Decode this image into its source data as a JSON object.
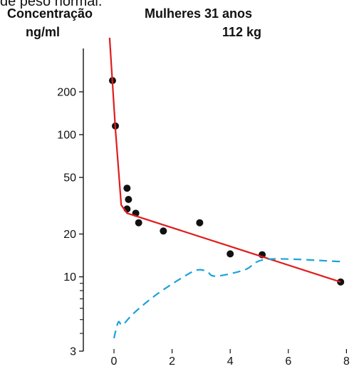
{
  "caption_top": "de peso normal.",
  "chart_data": {
    "type": "line",
    "title": "Mulheres 31 anos",
    "subtitle": "112 kg",
    "ylabel_line1": "Concentração",
    "ylabel_line2": "ng/ml",
    "xlabel": "",
    "yscale": "log",
    "ylim": [
      3,
      600
    ],
    "xlim": [
      -0.2,
      8
    ],
    "y_ticks": [
      3,
      10,
      20,
      50,
      100,
      200
    ],
    "y_minor_ticks": [
      4,
      5,
      6,
      7,
      8,
      9
    ],
    "x_ticks": [
      0,
      2,
      4,
      6,
      8
    ],
    "series": [
      {
        "style": "points",
        "color": "#111111",
        "x": [
          -0.05,
          0.05,
          0.45,
          0.5,
          0.45,
          0.75,
          0.85,
          1.7,
          2.95,
          4.0,
          5.1,
          7.8
        ],
        "y": [
          240,
          115,
          42,
          35,
          30,
          28,
          24,
          21,
          24,
          14.5,
          14.3,
          9.2
        ]
      },
      {
        "style": "solid",
        "color": "#e11b1b",
        "x": [
          -0.15,
          0.05,
          0.25,
          0.45,
          7.8
        ],
        "y": [
          480,
          110,
          32,
          28,
          9.2
        ]
      },
      {
        "style": "dashed",
        "color": "#1aa3d9",
        "x": [
          0,
          0.15,
          0.3,
          0.7,
          1.5,
          2.5,
          2.9,
          3.2,
          3.5,
          4.5,
          5.3,
          7.8
        ],
        "y": [
          3.7,
          4.8,
          4.6,
          5.6,
          7.6,
          10.3,
          11.2,
          10.9,
          10.1,
          11.2,
          13.3,
          12.8
        ]
      }
    ]
  }
}
